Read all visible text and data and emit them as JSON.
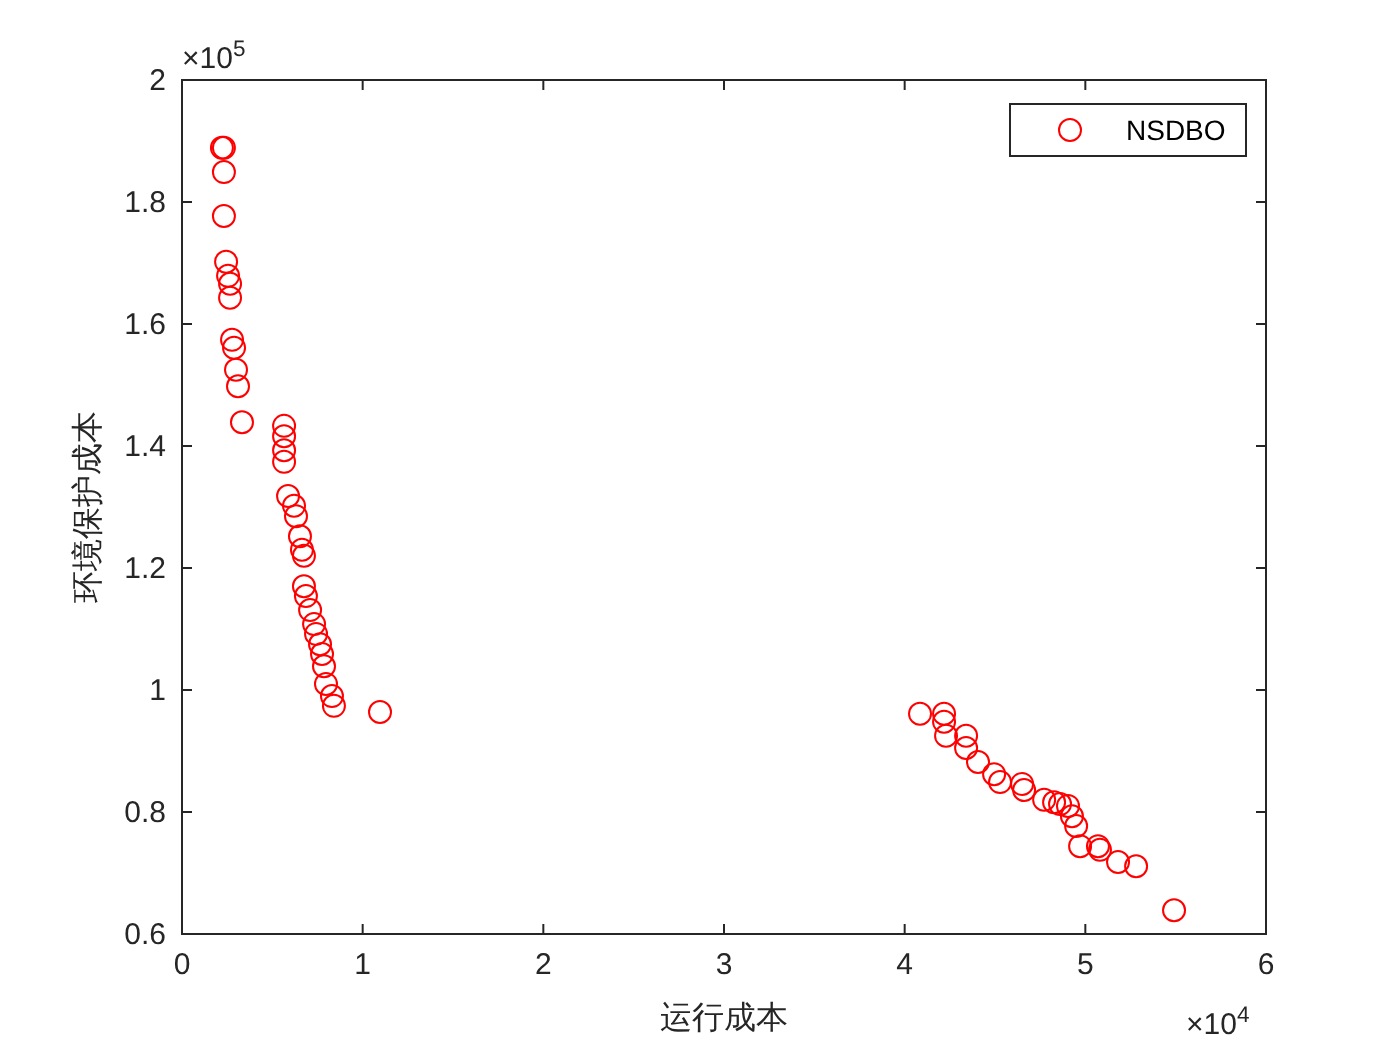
{
  "chart_data": {
    "type": "scatter",
    "xlabel": "运行成本",
    "ylabel": "环境保护成本",
    "annotations": [
      "×10$^{5}$",
      "×10$^{4}$"
    ],
    "xlim": [
      0,
      6
    ],
    "ylim": [
      0.6,
      2
    ],
    "xticks": [
      0,
      1,
      2,
      3,
      4,
      5,
      6
    ],
    "yticks": [
      0.6,
      0.8,
      1,
      1.2,
      1.4,
      1.6,
      1.8,
      2
    ],
    "marker": "circle",
    "legend": "top right",
    "grid": false,
    "series": [
      {
        "name": "NSDBO",
        "color": "#ff0000",
        "x": [
          0.221,
          0.232,
          0.232,
          0.232,
          0.244,
          0.255,
          0.266,
          0.266,
          0.277,
          0.288,
          0.299,
          0.31,
          0.332,
          0.565,
          0.565,
          0.565,
          0.565,
          0.587,
          0.62,
          0.631,
          0.653,
          0.664,
          0.675,
          0.675,
          0.686,
          0.709,
          0.731,
          0.742,
          0.764,
          0.775,
          0.786,
          0.797,
          0.83,
          0.841,
          1.096,
          4.085,
          4.218,
          4.218,
          4.229,
          4.34,
          4.34,
          4.406,
          4.495,
          4.528,
          4.65,
          4.661,
          4.772,
          4.827,
          4.86,
          4.904,
          4.926,
          4.949,
          4.971,
          5.07,
          5.081,
          5.181,
          5.281,
          5.491
        ],
        "values": [
          1.889,
          1.889,
          1.849,
          1.777,
          1.702,
          1.679,
          1.666,
          1.643,
          1.574,
          1.561,
          1.525,
          1.498,
          1.439,
          1.433,
          1.416,
          1.393,
          1.374,
          1.318,
          1.302,
          1.285,
          1.252,
          1.23,
          1.22,
          1.17,
          1.154,
          1.131,
          1.108,
          1.092,
          1.075,
          1.059,
          1.039,
          1.01,
          0.99,
          0.974,
          0.964,
          0.961,
          0.961,
          0.948,
          0.925,
          0.925,
          0.905,
          0.882,
          0.862,
          0.849,
          0.846,
          0.836,
          0.82,
          0.816,
          0.813,
          0.81,
          0.793,
          0.777,
          0.744,
          0.744,
          0.738,
          0.718,
          0.711,
          0.639
        ]
      }
    ]
  }
}
